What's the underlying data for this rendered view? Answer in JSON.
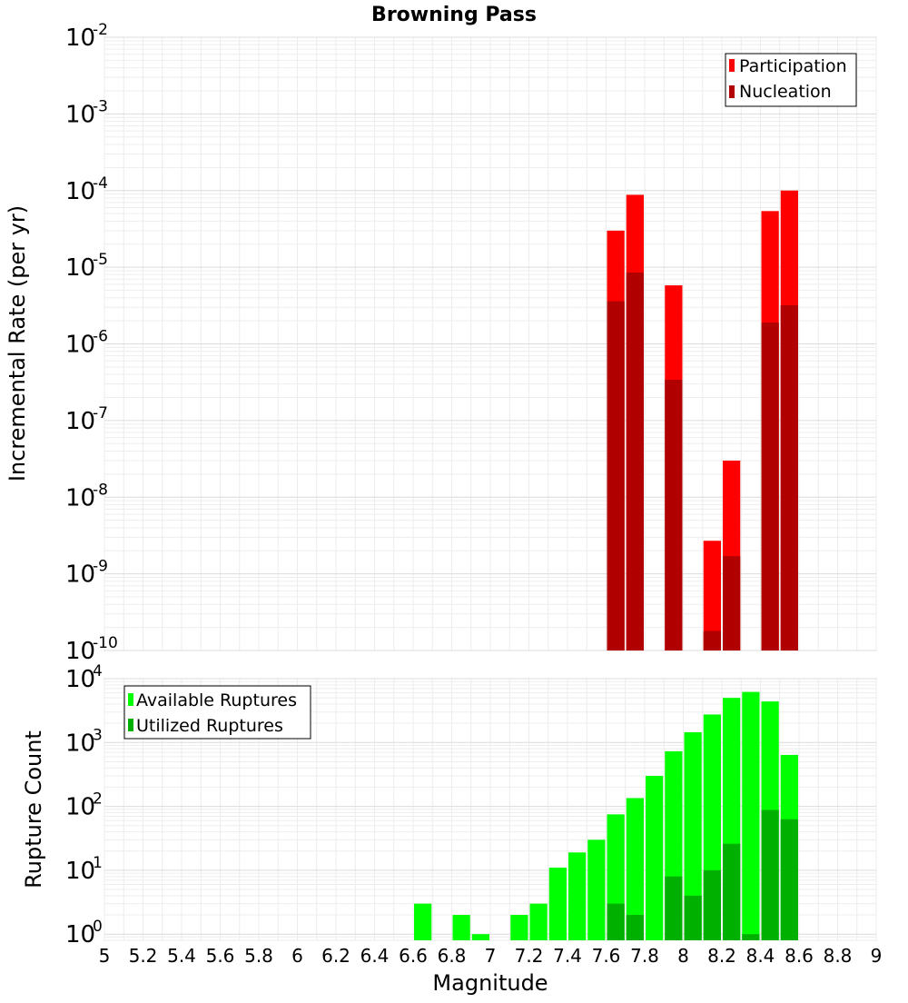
{
  "chart_data": [
    {
      "type": "bar",
      "title": "Browning Pass",
      "ylabel": "Incremental Rate (per yr)",
      "y_scale": "log",
      "ylim": [
        1e-10,
        0.01
      ],
      "xlim": [
        5,
        9
      ],
      "y_ticks": [
        {
          "base": "10",
          "exp": "-2"
        },
        {
          "base": "10",
          "exp": "-3"
        },
        {
          "base": "10",
          "exp": "-4"
        },
        {
          "base": "10",
          "exp": "-5"
        },
        {
          "base": "10",
          "exp": "-6"
        },
        {
          "base": "10",
          "exp": "-7"
        },
        {
          "base": "10",
          "exp": "-8"
        },
        {
          "base": "10",
          "exp": "-9"
        },
        {
          "base": "10",
          "exp": "-10"
        }
      ],
      "bin_width": 0.1,
      "legend_position": "top-right",
      "series": [
        {
          "name": "Participation",
          "color": "#ff0000",
          "x": [
            7.65,
            7.75,
            7.95,
            8.15,
            8.25,
            8.45,
            8.55
          ],
          "values": [
            3e-05,
            8.8e-05,
            5.8e-06,
            2.7e-09,
            3e-08,
            5.4e-05,
            0.0001
          ]
        },
        {
          "name": "Nucleation",
          "color": "#b00000",
          "x": [
            7.65,
            7.75,
            7.95,
            8.15,
            8.25,
            8.45,
            8.55
          ],
          "values": [
            3.6e-06,
            8.5e-06,
            3.4e-07,
            1.8e-10,
            1.7e-09,
            1.9e-06,
            3.2e-06
          ]
        }
      ]
    },
    {
      "type": "bar",
      "ylabel": "Rupture Count",
      "xlabel": "Magnitude",
      "y_scale": "log",
      "ylim": [
        0.8,
        10000
      ],
      "xlim": [
        5,
        9
      ],
      "x_ticks": [
        "5",
        "5.2",
        "5.4",
        "5.6",
        "5.8",
        "6",
        "6.2",
        "6.4",
        "6.6",
        "6.8",
        "7",
        "7.2",
        "7.4",
        "7.6",
        "7.8",
        "8",
        "8.2",
        "8.4",
        "8.6",
        "8.8",
        "9"
      ],
      "y_ticks": [
        {
          "base": "10",
          "exp": "4"
        },
        {
          "base": "10",
          "exp": "3"
        },
        {
          "base": "10",
          "exp": "2"
        },
        {
          "base": "10",
          "exp": "1"
        },
        {
          "base": "10",
          "exp": "0"
        }
      ],
      "bin_width": 0.1,
      "legend_position": "top-left",
      "series": [
        {
          "name": "Available Ruptures",
          "color": "#00ff00",
          "x": [
            6.65,
            6.85,
            6.95,
            7.15,
            7.25,
            7.35,
            7.45,
            7.55,
            7.65,
            7.75,
            7.85,
            7.95,
            8.05,
            8.15,
            8.25,
            8.35,
            8.45,
            8.55
          ],
          "values": [
            3,
            2,
            1,
            2,
            3,
            11,
            19,
            30,
            75,
            135,
            300,
            730,
            1450,
            2750,
            5000,
            6200,
            4400,
            640
          ]
        },
        {
          "name": "Utilized Ruptures",
          "color": "#00b000",
          "x": [
            7.65,
            7.75,
            7.95,
            8.05,
            8.15,
            8.25,
            8.35,
            8.45,
            8.55
          ],
          "values": [
            3,
            2,
            8,
            4,
            10,
            26,
            1,
            88,
            63
          ]
        }
      ]
    }
  ]
}
